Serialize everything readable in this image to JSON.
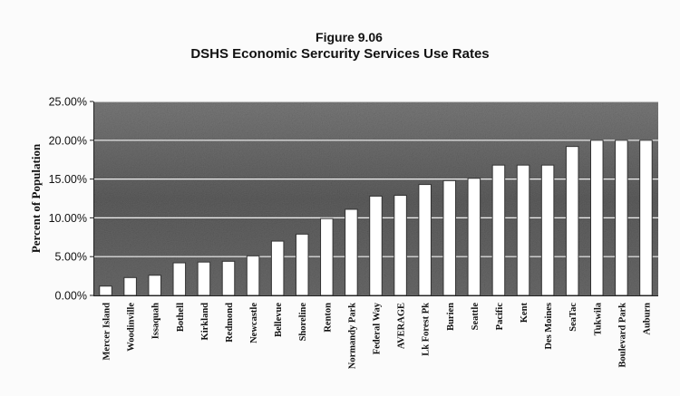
{
  "figure": {
    "number": "Figure 9.06",
    "title": "DSHS Economic Sercurity Services Use Rates"
  },
  "chart_data": {
    "type": "bar",
    "ylabel": "Percent of Population",
    "xlabel": "",
    "ylim": [
      0,
      0.25
    ],
    "yticks": [
      0,
      0.05,
      0.1,
      0.15,
      0.2,
      0.25
    ],
    "ytick_labels": [
      "0.00%",
      "5.00%",
      "10.00%",
      "15.00%",
      "20.00%",
      "25.00%"
    ],
    "grid": true,
    "categories": [
      "Mercer Island",
      "Woodinville",
      "Issaquah",
      "Bothell",
      "Kirkland",
      "Redmond",
      "Newcastle",
      "Bellevue",
      "Shoreline",
      "Renton",
      "Normandy Park",
      "Federal Way",
      "AVERAGE",
      "Lk Forest Pk",
      "Burien",
      "Seattle",
      "Pacific",
      "Kent",
      "Des Moines",
      "SeaTac",
      "Tukwila",
      "Boulevard Park",
      "Auburn"
    ],
    "values": [
      0.012,
      0.023,
      0.026,
      0.042,
      0.043,
      0.044,
      0.051,
      0.07,
      0.079,
      0.099,
      0.111,
      0.128,
      0.129,
      0.143,
      0.148,
      0.151,
      0.168,
      0.168,
      0.168,
      0.192,
      0.2,
      0.2,
      0.2
    ],
    "colors": {
      "bar_fill": "#ffffff",
      "plot_bg": "#6e6e6e",
      "gridline": "#f2f2f2",
      "text": "#111111"
    }
  }
}
